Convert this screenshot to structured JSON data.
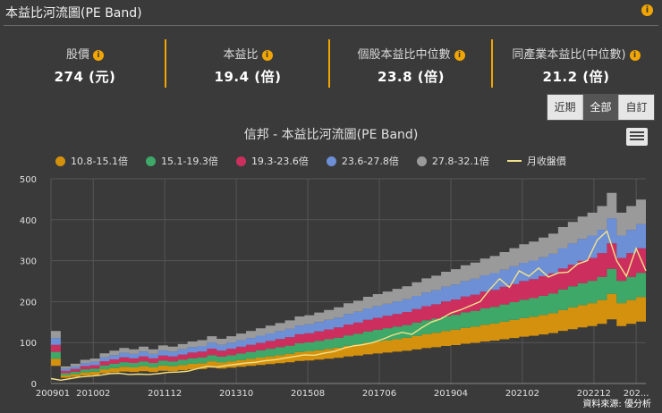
{
  "header": {
    "title": "本益比河流圖(PE Band)",
    "info_icon": "info-icon"
  },
  "stats": [
    {
      "label": "股價",
      "value": "274 (元)"
    },
    {
      "label": "本益比",
      "value": "19.4 (倍)"
    },
    {
      "label": "個股本益比中位數",
      "value": "23.8 (倍)"
    },
    {
      "label": "同產業本益比(中位數)",
      "value": "21.2 (倍)"
    }
  ],
  "range_buttons": {
    "recent": "近期",
    "all": "全部",
    "custom": "自訂",
    "active": "all"
  },
  "colors": {
    "accent": "#f0a500",
    "band1": "#d4910d",
    "band2": "#3ea868",
    "band3": "#cc2f5e",
    "band4": "#6c8fd6",
    "band5": "#9a9a9a",
    "price": "#f3e28a",
    "background": "#3a3a3a"
  },
  "source_text": "資料來源: 優分析",
  "chart_data": {
    "type": "area",
    "title": "信邦 - 本益比河流圖(PE Band)",
    "xlabel": "",
    "ylabel": "",
    "ylim": [
      0,
      500
    ],
    "yticks": [
      0,
      100,
      200,
      300,
      400,
      500
    ],
    "xtick_labels": [
      "200901",
      "201002",
      "201112",
      "201310",
      "201508",
      "201706",
      "201904",
      "202102",
      "202212",
      "202..."
    ],
    "xtick_index": [
      0,
      13,
      35,
      57,
      79,
      101,
      123,
      145,
      167,
      180
    ],
    "legend": [
      "10.8-15.1倍",
      "15.1-19.3倍",
      "19.3-23.6倍",
      "23.6-27.8倍",
      "27.8-32.1倍",
      "月收盤價"
    ],
    "x": [
      0,
      3,
      6,
      9,
      12,
      15,
      18,
      21,
      24,
      27,
      30,
      33,
      36,
      39,
      42,
      45,
      48,
      51,
      54,
      57,
      60,
      63,
      66,
      69,
      72,
      75,
      78,
      81,
      84,
      87,
      90,
      93,
      96,
      99,
      102,
      105,
      108,
      111,
      114,
      117,
      120,
      123,
      126,
      129,
      132,
      135,
      138,
      141,
      144,
      147,
      150,
      153,
      156,
      159,
      162,
      165,
      168,
      171,
      174,
      177,
      180,
      183
    ],
    "eps_ttm": [
      4.0,
      1.3,
      1.5,
      1.8,
      1.9,
      2.3,
      2.5,
      2.7,
      2.6,
      2.8,
      2.6,
      2.9,
      2.8,
      3.0,
      3.2,
      3.3,
      3.6,
      3.4,
      3.6,
      3.8,
      4.0,
      4.2,
      4.4,
      4.6,
      4.8,
      5.1,
      5.2,
      5.4,
      5.6,
      5.8,
      6.1,
      6.3,
      6.6,
      6.8,
      7.0,
      7.2,
      7.4,
      7.7,
      8.0,
      8.2,
      8.5,
      8.7,
      9.0,
      9.2,
      9.5,
      9.7,
      10.0,
      10.3,
      10.6,
      10.8,
      11.1,
      11.4,
      11.9,
      12.3,
      12.7,
      13.0,
      13.5,
      14.5,
      13.0,
      13.5,
      14.0,
      14.2
    ],
    "series": [
      {
        "name": "10.8-15.1倍",
        "multiple": 10.8
      },
      {
        "name": "15.1-19.3倍",
        "multiple": 15.1
      },
      {
        "name": "19.3-23.6倍",
        "multiple": 19.3
      },
      {
        "name": "23.6-27.8倍",
        "multiple": 23.6
      },
      {
        "name": "27.8-32.1倍",
        "multiple": 27.8,
        "top": 32.1
      }
    ],
    "price": [
      12,
      8,
      12,
      16,
      18,
      20,
      24,
      25,
      22,
      23,
      22,
      24,
      27,
      28,
      30,
      36,
      42,
      40,
      44,
      47,
      50,
      52,
      56,
      58,
      62,
      66,
      70,
      69,
      74,
      78,
      86,
      92,
      95,
      100,
      108,
      118,
      125,
      120,
      136,
      150,
      158,
      172,
      180,
      190,
      200,
      230,
      256,
      235,
      275,
      262,
      282,
      260,
      270,
      272,
      292,
      300,
      350,
      372,
      300,
      262,
      330,
      275
    ]
  }
}
